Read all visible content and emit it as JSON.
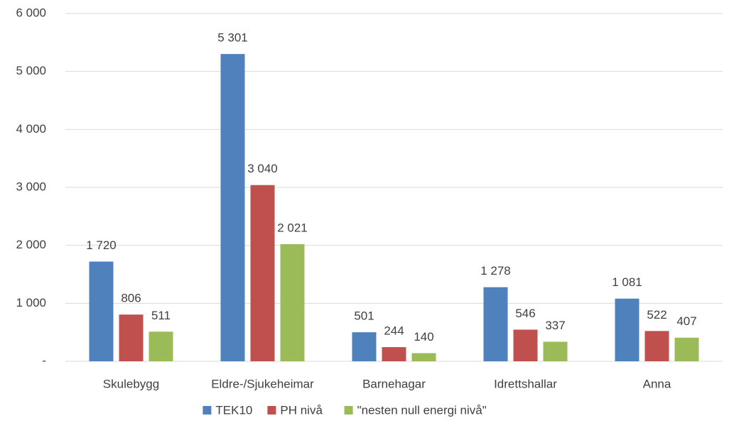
{
  "chart_data": {
    "type": "bar",
    "categories": [
      "Skulebygg",
      "Eldre-/Sjukeheimar",
      "Barnehagar",
      "Idrettshallar",
      "Anna"
    ],
    "series": [
      {
        "name": "TEK10",
        "color": "#4f81bd",
        "values": [
          1720,
          5301,
          501,
          1278,
          1081
        ],
        "value_labels": [
          "1 720",
          "5 301",
          "501",
          "1 278",
          "1 081"
        ]
      },
      {
        "name": "PH nivå",
        "color": "#c0504d",
        "values": [
          806,
          3040,
          244,
          546,
          522
        ],
        "value_labels": [
          "806",
          "3 040",
          "244",
          "546",
          "522"
        ]
      },
      {
        "name": "\"nesten null energi nivå\"",
        "color": "#9bbb59",
        "values": [
          511,
          2021,
          140,
          337,
          407
        ],
        "value_labels": [
          "511",
          "2 021",
          "140",
          "337",
          "407"
        ]
      }
    ],
    "ylim": [
      0,
      6000
    ],
    "yticks": [
      {
        "value": 0,
        "label": "-"
      },
      {
        "value": 1000,
        "label": "1 000"
      },
      {
        "value": 2000,
        "label": "2 000"
      },
      {
        "value": 3000,
        "label": "3 000"
      },
      {
        "value": 4000,
        "label": "4 000"
      },
      {
        "value": 5000,
        "label": "5 000"
      },
      {
        "value": 6000,
        "label": "6 000"
      }
    ],
    "grid": true,
    "legend": "bottom"
  }
}
